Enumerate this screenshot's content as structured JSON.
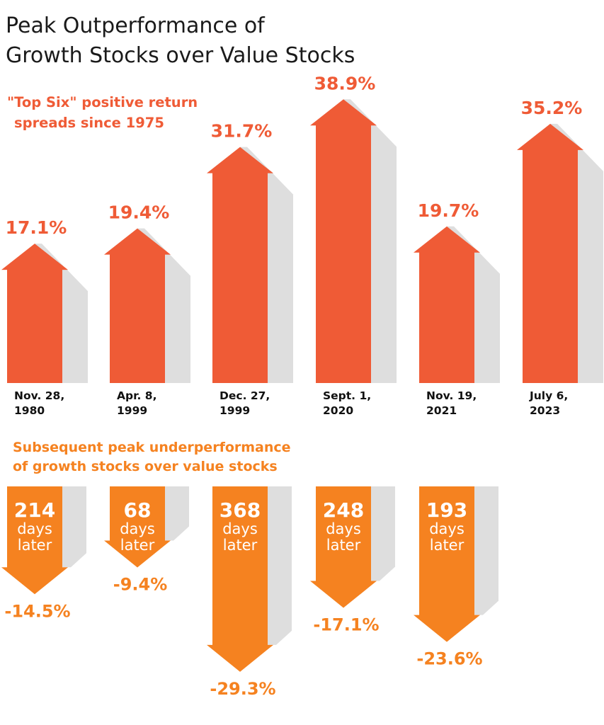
{
  "title_line1": "Peak Outperformance of",
  "title_line2": "Growth Stocks over Value Stocks",
  "chart_data": {
    "type": "bar",
    "colors": {
      "up": "#ef5b36",
      "down": "#f58220",
      "shadow": "#dedede"
    },
    "upper": {
      "subtitle_line1": "\"Top Six\" positive return",
      "subtitle_line2": "spreads since 1975",
      "categories": [
        {
          "line1": "Nov. 28,",
          "line2": "1980"
        },
        {
          "line1": "Apr. 8,",
          "line2": "1999"
        },
        {
          "line1": "Dec. 27,",
          "line2": "1999"
        },
        {
          "line1": "Sept. 1,",
          "line2": "2020"
        },
        {
          "line1": "Nov. 19,",
          "line2": "2021"
        },
        {
          "line1": "July 6,",
          "line2": "2023"
        }
      ],
      "values": [
        17.1,
        19.4,
        31.7,
        38.9,
        19.7,
        35.2
      ],
      "labels": [
        "17.1%",
        "19.4%",
        "31.7%",
        "38.9%",
        "19.7%",
        "35.2%"
      ]
    },
    "lower": {
      "subtitle_line1": "Subsequent peak underperformance",
      "subtitle_line2": "of growth stocks over value stocks",
      "days_word": "days",
      "later_word": "later",
      "days": [
        214,
        68,
        368,
        248,
        193
      ],
      "values": [
        -14.5,
        -9.4,
        -29.3,
        -17.1,
        -23.6
      ],
      "labels": [
        "-14.5%",
        "-9.4%",
        "-29.3%",
        "-17.1%",
        "-23.6%"
      ]
    }
  }
}
